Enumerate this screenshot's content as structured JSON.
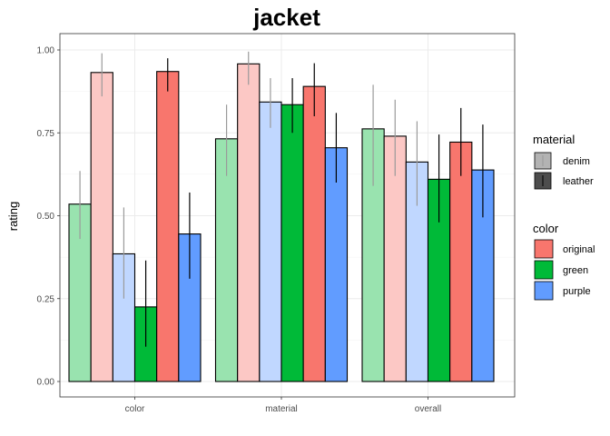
{
  "chart_data": {
    "type": "bar",
    "title": "jacket",
    "xlabel": "",
    "ylabel": "rating",
    "ylim": [
      0,
      1.05
    ],
    "yticks": [
      "0.00",
      "0.25",
      "0.50",
      "0.75",
      "1.00"
    ],
    "ytick_values": [
      0,
      0.25,
      0.5,
      0.75,
      1.0
    ],
    "categories": [
      "color",
      "material",
      "overall"
    ],
    "grid": true,
    "legend_placement": "right",
    "series": [
      {
        "material": "denim",
        "color": "green",
        "values": [
          0.535,
          0.732,
          0.762
        ],
        "err_low": [
          0.43,
          0.62,
          0.59
        ],
        "err_high": [
          0.635,
          0.835,
          0.895
        ]
      },
      {
        "material": "denim",
        "color": "original",
        "values": [
          0.932,
          0.958,
          0.74
        ],
        "err_low": [
          0.86,
          0.895,
          0.62
        ],
        "err_high": [
          0.99,
          0.995,
          0.85
        ]
      },
      {
        "material": "denim",
        "color": "purple",
        "values": [
          0.385,
          0.843,
          0.662
        ],
        "err_low": [
          0.25,
          0.765,
          0.53
        ],
        "err_high": [
          0.525,
          0.915,
          0.785
        ]
      },
      {
        "material": "leather",
        "color": "green",
        "values": [
          0.225,
          0.835,
          0.61
        ],
        "err_low": [
          0.105,
          0.75,
          0.48
        ],
        "err_high": [
          0.365,
          0.915,
          0.745
        ]
      },
      {
        "material": "leather",
        "color": "original",
        "values": [
          0.935,
          0.89,
          0.722
        ],
        "err_low": [
          0.875,
          0.8,
          0.62
        ],
        "err_high": [
          0.975,
          0.96,
          0.825
        ]
      },
      {
        "material": "leather",
        "color": "purple",
        "values": [
          0.445,
          0.705,
          0.638
        ],
        "err_low": [
          0.31,
          0.6,
          0.495
        ],
        "err_high": [
          0.57,
          0.81,
          0.775
        ]
      }
    ],
    "legend": {
      "material": {
        "title": "material",
        "items": [
          "denim",
          "leather"
        ]
      },
      "color": {
        "title": "color",
        "items": [
          "original",
          "green",
          "purple"
        ]
      }
    },
    "colors": {
      "original": "#F8766D",
      "green": "#00BA38",
      "purple": "#619CFF"
    },
    "alpha": {
      "denim": 0.4,
      "leather": 1.0
    }
  }
}
